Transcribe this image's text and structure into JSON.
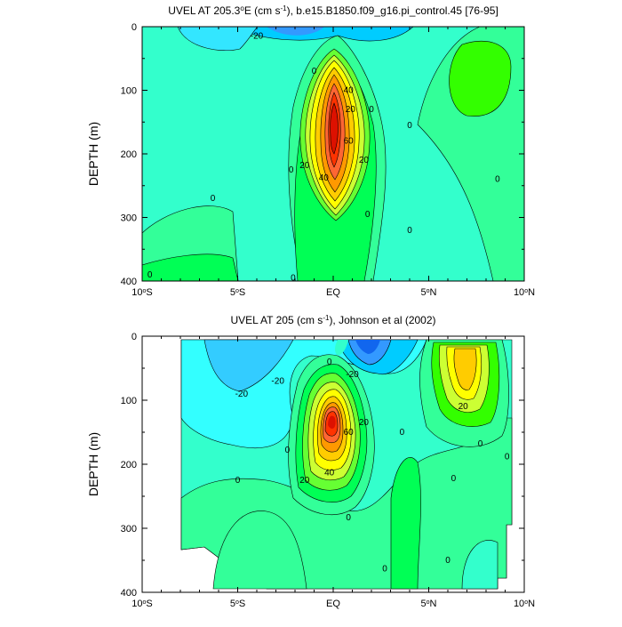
{
  "chart_data": [
    {
      "type": "heatmap",
      "title_prefix": "UVEL AT 205.3",
      "title_deg": "o",
      "title_mid": "E (cm s",
      "title_exp": "-1",
      "title_suffix": "), b.e15.B1850.f09_g16.pi_control.45 [76-95]",
      "ylabel": "DEPTH (m)",
      "xlim": [
        -10,
        10
      ],
      "ylim": [
        0,
        400
      ],
      "x_ticks": [
        {
          "value": -10,
          "num": "10",
          "deg": "o",
          "hemi": "S"
        },
        {
          "value": -5,
          "num": "5",
          "deg": "o",
          "hemi": "S"
        },
        {
          "value": 0,
          "num": "EQ",
          "deg": "",
          "hemi": ""
        },
        {
          "value": 5,
          "num": "5",
          "deg": "o",
          "hemi": "N"
        },
        {
          "value": 10,
          "num": "10",
          "deg": "o",
          "hemi": "N"
        }
      ],
      "y_ticks": [
        "0",
        "100",
        "200",
        "300",
        "400"
      ],
      "contour_labels": [
        {
          "text": "-20",
          "lat": -4.0,
          "depth": 15
        },
        {
          "text": "0",
          "lat": -1.0,
          "depth": 70
        },
        {
          "text": "40",
          "lat": 0.8,
          "depth": 100
        },
        {
          "text": "20",
          "lat": 0.9,
          "depth": 130
        },
        {
          "text": "0",
          "lat": 2.0,
          "depth": 130
        },
        {
          "text": "60",
          "lat": 0.8,
          "depth": 180
        },
        {
          "text": "20",
          "lat": 1.6,
          "depth": 210
        },
        {
          "text": "20",
          "lat": -1.5,
          "depth": 218
        },
        {
          "text": "40",
          "lat": -0.5,
          "depth": 238
        },
        {
          "text": "0",
          "lat": -2.2,
          "depth": 225
        },
        {
          "text": "0",
          "lat": -6.3,
          "depth": 270
        },
        {
          "text": "0",
          "lat": 4.0,
          "depth": 155
        },
        {
          "text": "0",
          "lat": 8.6,
          "depth": 240
        },
        {
          "text": "0",
          "lat": 1.8,
          "depth": 295
        },
        {
          "text": "0",
          "lat": 4.0,
          "depth": 320
        },
        {
          "text": "0",
          "lat": -9.6,
          "depth": 390
        },
        {
          "text": "0",
          "lat": -2.1,
          "depth": 395
        }
      ]
    },
    {
      "type": "heatmap",
      "title_prefix": "UVEL AT 205 (cm s",
      "title_exp": "-1",
      "title_suffix": "), Johnson et al (2002)",
      "ylabel": "DEPTH (m)",
      "xlim": [
        -10,
        10
      ],
      "ylim": [
        0,
        400
      ],
      "x_ticks": [
        {
          "value": -10,
          "num": "10",
          "deg": "o",
          "hemi": "S"
        },
        {
          "value": -5,
          "num": "5",
          "deg": "o",
          "hemi": "S"
        },
        {
          "value": 0,
          "num": "EQ",
          "deg": "",
          "hemi": ""
        },
        {
          "value": 5,
          "num": "5",
          "deg": "o",
          "hemi": "N"
        },
        {
          "value": 10,
          "num": "10",
          "deg": "o",
          "hemi": "N"
        }
      ],
      "y_ticks": [
        "0",
        "100",
        "200",
        "300",
        "400"
      ],
      "contour_labels": [
        {
          "text": "0",
          "lat": -0.2,
          "depth": 40
        },
        {
          "text": "-20",
          "lat": 1.0,
          "depth": 60
        },
        {
          "text": "-20",
          "lat": -2.9,
          "depth": 70
        },
        {
          "text": "-20",
          "lat": -4.8,
          "depth": 90
        },
        {
          "text": "20",
          "lat": 1.6,
          "depth": 135
        },
        {
          "text": "60",
          "lat": 0.8,
          "depth": 150
        },
        {
          "text": "40",
          "lat": -0.2,
          "depth": 213
        },
        {
          "text": "20",
          "lat": -1.5,
          "depth": 225
        },
        {
          "text": "0",
          "lat": -2.4,
          "depth": 178
        },
        {
          "text": "0",
          "lat": -5.0,
          "depth": 225
        },
        {
          "text": "0",
          "lat": 3.6,
          "depth": 150
        },
        {
          "text": "20",
          "lat": 6.8,
          "depth": 110
        },
        {
          "text": "0",
          "lat": 7.7,
          "depth": 168
        },
        {
          "text": "0",
          "lat": 9.1,
          "depth": 188
        },
        {
          "text": "0",
          "lat": 6.3,
          "depth": 222
        },
        {
          "text": "0",
          "lat": 0.8,
          "depth": 283
        },
        {
          "text": "0",
          "lat": 2.7,
          "depth": 363
        },
        {
          "text": "0",
          "lat": 6.0,
          "depth": 350
        }
      ]
    }
  ]
}
